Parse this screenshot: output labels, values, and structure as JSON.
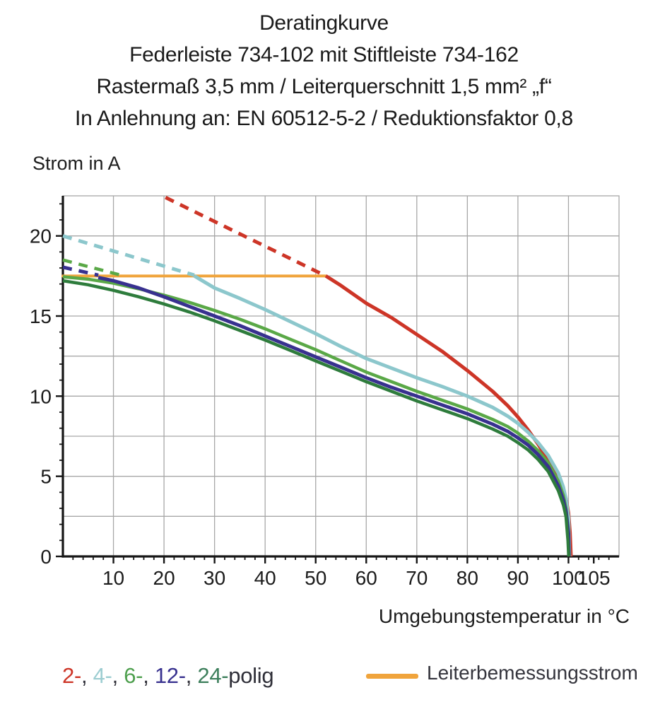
{
  "title": {
    "line1": "Deratingkurve",
    "line2": "Federleiste 734-102 mit Stiftleiste 734-162",
    "line3": "Rastermaß 3,5 mm / Leiterquerschnitt 1,5 mm² „f“",
    "line4": "In Anlehnung an: EN 60512-5-2 / Reduktionsfaktor 0,8"
  },
  "axes": {
    "y_title": "Strom in A",
    "x_title": "Umgebungstemperatur in °C"
  },
  "legend": {
    "pole_items": [
      {
        "label": "2-",
        "color": "#cd3527"
      },
      {
        "label": "4-",
        "color": "#9ccdd1"
      },
      {
        "label": "6-",
        "color": "#4fa04f"
      },
      {
        "label": "12-",
        "color": "#38318f"
      },
      {
        "label": "24-",
        "color": "#3d7f5c"
      }
    ],
    "separator": ", ",
    "suffix": "polig",
    "suffix_color": "#2f2f38",
    "rated_label": "Leiterbemessungsstrom",
    "rated_color": "#f0a43c"
  },
  "chart_data": {
    "type": "line",
    "title": "Deratingkurve",
    "xlabel": "Umgebungstemperatur in °C",
    "ylabel": "Strom in A",
    "xlim": [
      0,
      110
    ],
    "ylim": [
      0,
      22.5
    ],
    "x_major_ticks": [
      10,
      20,
      30,
      40,
      50,
      60,
      70,
      80,
      90,
      100,
      105
    ],
    "x_minor_step": 2,
    "y_major_ticks": [
      0,
      5,
      10,
      15,
      20
    ],
    "y_minor_step": 1,
    "grid_step_x": 10,
    "grid_step_y": 2.5,
    "grid": true,
    "grid_color": "#a7a7a7",
    "axis_color": "#161616",
    "tick_label_color": "#1b1b1b",
    "legend_position": "bottom",
    "rated_current_line": {
      "name": "Leiterbemessungsstrom",
      "color": "#f0a43c",
      "y": 17.5,
      "x_range": [
        0,
        52
      ],
      "width": 4
    },
    "series": [
      {
        "name": "2-polig",
        "color": "#cd3527",
        "width": 5,
        "dashed_above_rated": [
          [
            20.3,
            22.4
          ],
          [
            52,
            17.5
          ]
        ],
        "solid": [
          [
            52,
            17.5
          ],
          [
            55,
            16.9
          ],
          [
            60,
            15.8
          ],
          [
            65,
            14.9
          ],
          [
            70,
            13.85
          ],
          [
            75,
            12.8
          ],
          [
            80,
            11.6
          ],
          [
            85,
            10.3
          ],
          [
            88,
            9.4
          ],
          [
            90,
            8.7
          ],
          [
            92,
            7.9
          ],
          [
            94,
            7.0
          ],
          [
            96,
            6.0
          ],
          [
            98,
            4.9
          ],
          [
            99,
            4.15
          ],
          [
            99.5,
            3.6
          ],
          [
            100,
            2.7
          ],
          [
            100.3,
            1.5
          ],
          [
            100.5,
            0
          ]
        ]
      },
      {
        "name": "4-polig",
        "color": "#8cc7cc",
        "width": 5,
        "dashed_above_rated": [
          [
            0,
            20.0
          ],
          [
            26,
            17.55
          ]
        ],
        "solid": [
          [
            26,
            17.5
          ],
          [
            30,
            16.75
          ],
          [
            35,
            16.1
          ],
          [
            40,
            15.4
          ],
          [
            45,
            14.65
          ],
          [
            50,
            13.9
          ],
          [
            55,
            13.1
          ],
          [
            60,
            12.35
          ],
          [
            65,
            11.75
          ],
          [
            70,
            11.15
          ],
          [
            75,
            10.6
          ],
          [
            80,
            10.0
          ],
          [
            85,
            9.3
          ],
          [
            88,
            8.75
          ],
          [
            90,
            8.3
          ],
          [
            92,
            7.75
          ],
          [
            94,
            7.1
          ],
          [
            96,
            6.3
          ],
          [
            98,
            5.2
          ],
          [
            99,
            4.3
          ],
          [
            99.5,
            3.6
          ],
          [
            100,
            2.4
          ],
          [
            100.2,
            0
          ]
        ]
      },
      {
        "name": "6-polig",
        "color": "#5aa847",
        "width": 4.5,
        "dashed_above_rated": [
          [
            0,
            18.5
          ],
          [
            11.5,
            17.55
          ]
        ],
        "solid": [
          [
            0,
            17.45
          ],
          [
            5,
            17.3
          ],
          [
            10,
            17.05
          ],
          [
            15,
            16.7
          ],
          [
            20,
            16.3
          ],
          [
            25,
            15.85
          ],
          [
            30,
            15.35
          ],
          [
            35,
            14.8
          ],
          [
            40,
            14.2
          ],
          [
            45,
            13.55
          ],
          [
            50,
            12.9
          ],
          [
            55,
            12.2
          ],
          [
            60,
            11.5
          ],
          [
            65,
            10.9
          ],
          [
            70,
            10.3
          ],
          [
            75,
            9.75
          ],
          [
            80,
            9.2
          ],
          [
            85,
            8.55
          ],
          [
            88,
            8.1
          ],
          [
            90,
            7.7
          ],
          [
            92,
            7.2
          ],
          [
            94,
            6.6
          ],
          [
            96,
            5.85
          ],
          [
            98,
            4.7
          ],
          [
            99,
            3.8
          ],
          [
            99.5,
            3.0
          ],
          [
            100,
            1.6
          ],
          [
            100.15,
            0
          ]
        ]
      },
      {
        "name": "12-polig",
        "color": "#38318f",
        "width": 5,
        "dashed_above_rated": [
          [
            0,
            18.05
          ],
          [
            7,
            17.55
          ]
        ],
        "solid": [
          [
            7,
            17.4
          ],
          [
            10,
            17.2
          ],
          [
            15,
            16.75
          ],
          [
            20,
            16.2
          ],
          [
            25,
            15.6
          ],
          [
            30,
            15.0
          ],
          [
            35,
            14.4
          ],
          [
            40,
            13.75
          ],
          [
            45,
            13.1
          ],
          [
            50,
            12.45
          ],
          [
            55,
            11.8
          ],
          [
            60,
            11.15
          ],
          [
            65,
            10.55
          ],
          [
            70,
            10.0
          ],
          [
            75,
            9.45
          ],
          [
            80,
            8.9
          ],
          [
            85,
            8.25
          ],
          [
            88,
            7.8
          ],
          [
            90,
            7.4
          ],
          [
            92,
            6.95
          ],
          [
            94,
            6.35
          ],
          [
            96,
            5.6
          ],
          [
            98,
            4.4
          ],
          [
            99,
            3.5
          ],
          [
            99.5,
            2.8
          ],
          [
            100,
            1.4
          ],
          [
            100.1,
            0
          ]
        ]
      },
      {
        "name": "24-polig",
        "color": "#2e7c3c",
        "width": 4.5,
        "dashed_above_rated": null,
        "solid": [
          [
            0,
            17.2
          ],
          [
            5,
            16.95
          ],
          [
            10,
            16.6
          ],
          [
            15,
            16.2
          ],
          [
            20,
            15.75
          ],
          [
            25,
            15.25
          ],
          [
            30,
            14.7
          ],
          [
            35,
            14.1
          ],
          [
            40,
            13.5
          ],
          [
            45,
            12.85
          ],
          [
            50,
            12.2
          ],
          [
            55,
            11.55
          ],
          [
            60,
            10.9
          ],
          [
            65,
            10.3
          ],
          [
            70,
            9.7
          ],
          [
            75,
            9.15
          ],
          [
            80,
            8.6
          ],
          [
            85,
            7.95
          ],
          [
            88,
            7.5
          ],
          [
            90,
            7.1
          ],
          [
            92,
            6.65
          ],
          [
            94,
            6.05
          ],
          [
            96,
            5.3
          ],
          [
            98,
            4.1
          ],
          [
            99,
            3.2
          ],
          [
            99.5,
            2.5
          ],
          [
            99.9,
            1.0
          ],
          [
            100.05,
            0
          ]
        ]
      }
    ]
  }
}
